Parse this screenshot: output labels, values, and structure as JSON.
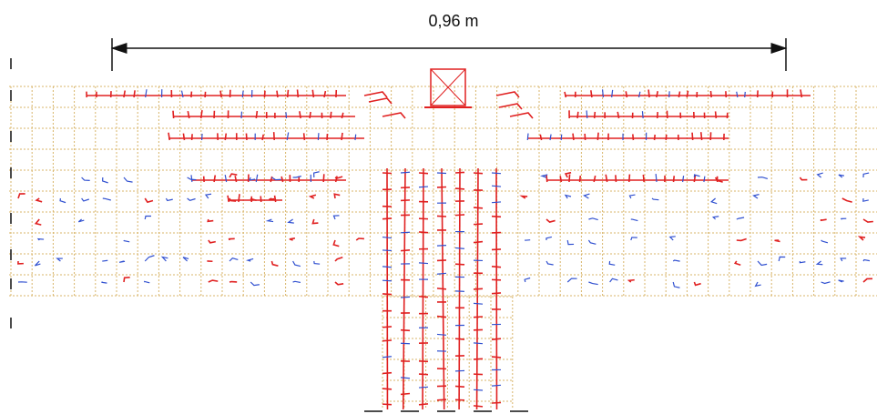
{
  "dimension": {
    "label": "0,96 m"
  }
}
